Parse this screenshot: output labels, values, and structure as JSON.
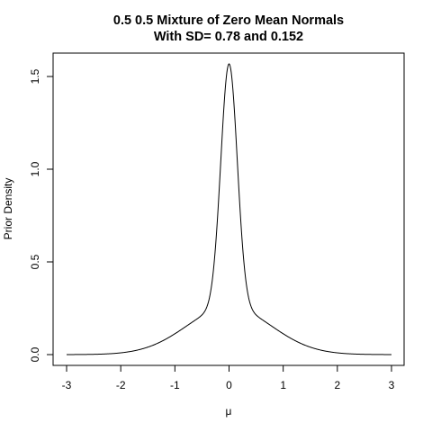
{
  "chart_data": {
    "type": "line",
    "title": "0.5 0.5 Mixture of Zero Mean Normals",
    "subtitle": "With SD= 0.78 and 0.152",
    "xlabel": "μ",
    "ylabel": "Prior Density",
    "xlim": [
      -3,
      3
    ],
    "ylim": [
      0,
      1.6
    ],
    "x_ticks": [
      -3,
      -2,
      -1,
      0,
      1,
      2,
      3
    ],
    "x_tick_labels": [
      "-3",
      "-2",
      "-1",
      "0",
      "1",
      "2",
      "3"
    ],
    "y_ticks": [
      0,
      0.5,
      1,
      1.5
    ],
    "y_tick_labels": [
      "0.0",
      "0.5",
      "1.0",
      "1.5"
    ],
    "mixture": {
      "weights": [
        0.5,
        0.5
      ],
      "sd": [
        0.78,
        0.152
      ],
      "mean": 0
    },
    "grid": false,
    "legend": "none",
    "line_color": "#000000"
  }
}
